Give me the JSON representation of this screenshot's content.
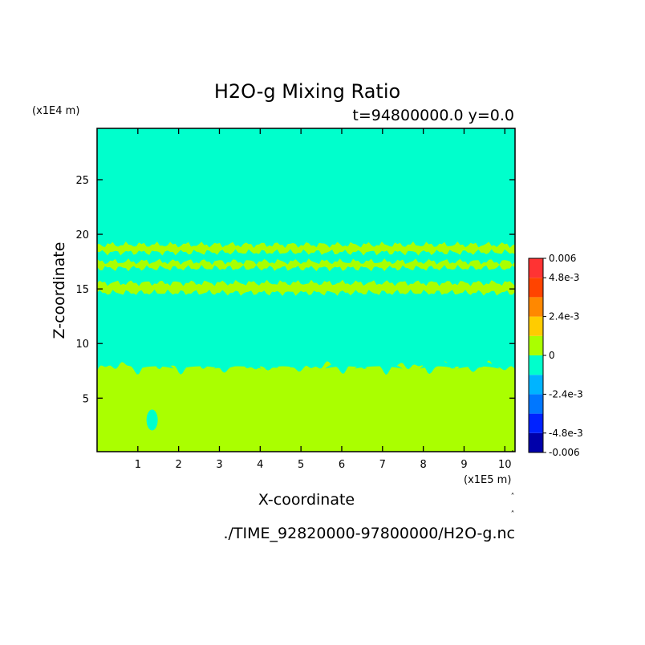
{
  "chart_data": {
    "type": "heatmap",
    "title": "H2O-g Mixing Ratio",
    "subtitle": "t=94800000.0 y=0.0",
    "xlabel": "X-coordinate",
    "ylabel": "Z-coordinate",
    "x_scale_label": "(x1E5 m)",
    "y_scale_label": "(x1E4 m)",
    "footer": "./TIME_92820000-97800000/H2O-g.nc",
    "xlim": [
      0,
      10.25
    ],
    "ylim": [
      0.1,
      29.7
    ],
    "x_ticks": [
      1,
      2,
      3,
      4,
      5,
      6,
      7,
      8,
      9,
      10
    ],
    "y_ticks": [
      5,
      10,
      15,
      20,
      25
    ],
    "background_color": "#00ffcc",
    "field": {
      "lower_layer": {
        "z_top": 7.5,
        "color": "#aaff00"
      },
      "bands": [
        {
          "z_center": 15.1,
          "half_thickness": 0.45,
          "color": "#aaff00"
        },
        {
          "z_center": 17.2,
          "half_thickness": 0.3,
          "color": "#aaff00"
        },
        {
          "z_center": 18.7,
          "half_thickness": 0.35,
          "color": "#aaff00"
        }
      ],
      "hole": {
        "x": 1.35,
        "z": 3.0,
        "color": "#00ffcc"
      }
    },
    "colorbar": {
      "labels": [
        "0.006",
        "4.8e-3",
        "2.4e-3",
        "0",
        "-2.4e-3",
        "-4.8e-3",
        "-0.006"
      ],
      "levels": [
        -0.006,
        -0.0048,
        -0.0036,
        -0.0024,
        -0.0012,
        0,
        0.0012,
        0.0024,
        0.0036,
        0.0048,
        0.006
      ],
      "colors": [
        "#0000aa",
        "#0022ff",
        "#0077ff",
        "#00b4ff",
        "#00ffcc",
        "#aaff00",
        "#ffcc00",
        "#ff8800",
        "#ff4400",
        "#ff3333"
      ]
    }
  }
}
